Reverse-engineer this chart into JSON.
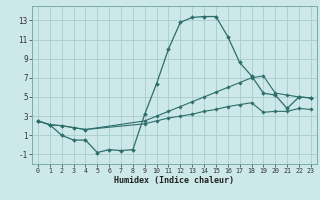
{
  "background_color": "#cce8e8",
  "grid_color": "#aacccc",
  "line_color": "#2e6e6a",
  "marker_color": "#2e6e6a",
  "xlabel": "Humidex (Indice chaleur)",
  "xlim": [
    -0.5,
    23.5
  ],
  "ylim": [
    -2.0,
    14.5
  ],
  "yticks": [
    -1,
    1,
    3,
    5,
    7,
    9,
    11,
    13
  ],
  "xticks": [
    0,
    1,
    2,
    3,
    4,
    5,
    6,
    7,
    8,
    9,
    10,
    11,
    12,
    13,
    14,
    15,
    16,
    17,
    18,
    19,
    20,
    21,
    22,
    23
  ],
  "series1_x": [
    0,
    1,
    2,
    3,
    4,
    5,
    6,
    7,
    8,
    9,
    10,
    11,
    12,
    13,
    14,
    15,
    16,
    17,
    18,
    19,
    20,
    21,
    22,
    23
  ],
  "series1_y": [
    2.5,
    2.1,
    1.0,
    0.5,
    0.5,
    -0.8,
    -0.5,
    -0.6,
    -0.5,
    3.2,
    6.4,
    10.0,
    12.8,
    13.3,
    13.4,
    13.4,
    11.3,
    8.6,
    7.2,
    5.4,
    5.2,
    3.8,
    5.0,
    4.9
  ],
  "series2_x": [
    0,
    1,
    2,
    3,
    4,
    9,
    10,
    11,
    12,
    13,
    14,
    15,
    16,
    17,
    18,
    19,
    20,
    21,
    22,
    23
  ],
  "series2_y": [
    2.5,
    2.1,
    2.0,
    1.8,
    1.6,
    2.5,
    3.0,
    3.5,
    4.0,
    4.5,
    5.0,
    5.5,
    6.0,
    6.5,
    7.0,
    7.2,
    5.4,
    5.2,
    5.0,
    4.9
  ],
  "series3_x": [
    0,
    1,
    2,
    3,
    4,
    9,
    10,
    11,
    12,
    13,
    14,
    15,
    16,
    17,
    18,
    19,
    20,
    21,
    22,
    23
  ],
  "series3_y": [
    2.5,
    2.1,
    2.0,
    1.8,
    1.6,
    2.2,
    2.5,
    2.8,
    3.0,
    3.2,
    3.5,
    3.7,
    4.0,
    4.2,
    4.4,
    3.4,
    3.5,
    3.5,
    3.8,
    3.7
  ]
}
